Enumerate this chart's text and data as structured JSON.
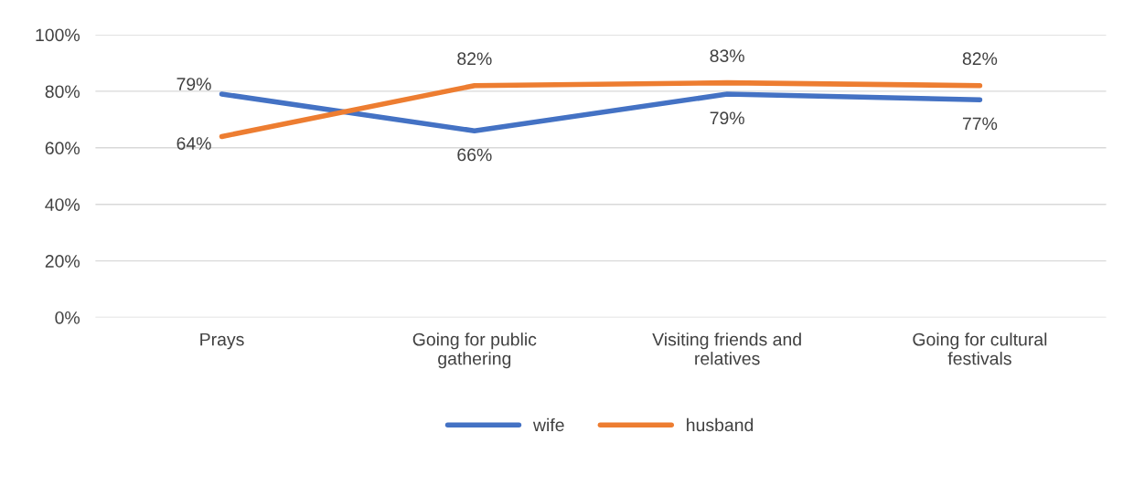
{
  "chart_data": {
    "type": "line",
    "categories": [
      "Prays",
      "Going for public gathering",
      "Visiting friends and relatives",
      "Going for cultural festivals"
    ],
    "series": [
      {
        "name": "wife",
        "color": "#4472c4",
        "values": [
          79,
          66,
          79,
          77
        ],
        "value_labels": [
          "79%",
          "66%",
          "79%",
          "77%"
        ]
      },
      {
        "name": "husband",
        "color": "#ed7d31",
        "values": [
          64,
          82,
          83,
          82
        ],
        "value_labels": [
          "64%",
          "82%",
          "83%",
          "82%"
        ]
      }
    ],
    "ylim": [
      0,
      100
    ],
    "yticks": [
      {
        "value": 0,
        "label": "0%"
      },
      {
        "value": 20,
        "label": "20%"
      },
      {
        "value": 40,
        "label": "40%"
      },
      {
        "value": 60,
        "label": "60%"
      },
      {
        "value": 80,
        "label": "80%"
      },
      {
        "value": 100,
        "label": "100%"
      }
    ],
    "grid": "y",
    "legend": "bottom",
    "marker": "none",
    "line_style": "solid"
  }
}
